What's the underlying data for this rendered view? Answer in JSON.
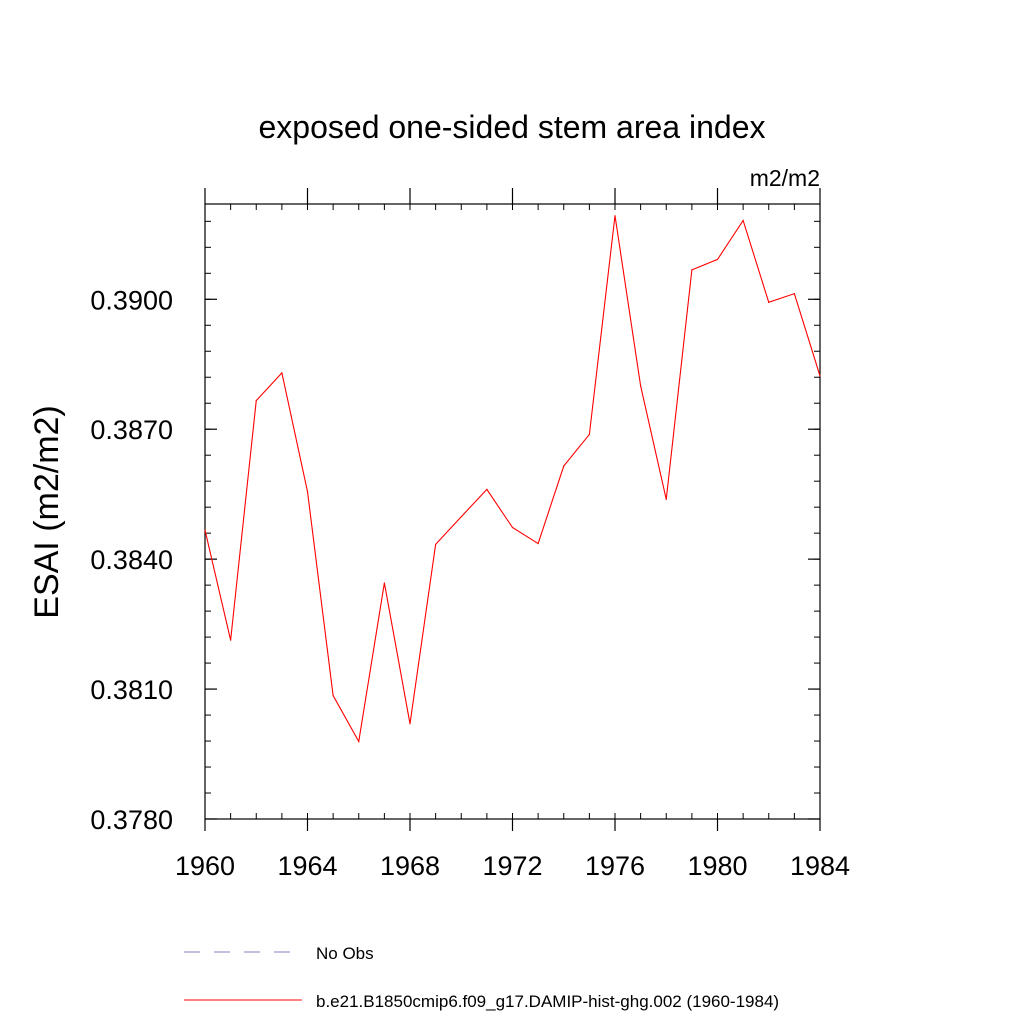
{
  "chart_data": {
    "type": "line",
    "title": "exposed one-sided stem area index",
    "units_label": "m2/m2",
    "xlabel": "",
    "ylabel": "ESAI  (m2/m2)",
    "xlim": [
      1960,
      1984
    ],
    "ylim": [
      0.378,
      0.3922
    ],
    "x_ticks": [
      1960,
      1964,
      1968,
      1972,
      1976,
      1980,
      1984
    ],
    "x_tick_labels": [
      "1960",
      "1964",
      "1968",
      "1972",
      "1976",
      "1980",
      "1984"
    ],
    "y_ticks": [
      0.378,
      0.381,
      0.384,
      0.387,
      0.39
    ],
    "y_tick_labels": [
      "0.3780",
      "0.3810",
      "0.3840",
      "0.3870",
      "0.3900"
    ],
    "y_minor_step": 0.0006,
    "x_minor_step": 1,
    "grid": false,
    "legend_placement": "bottom",
    "series": [
      {
        "name": "No Obs",
        "color": "#8080c0",
        "dash": "dashed",
        "x": [],
        "values": []
      },
      {
        "name": "b.e21.B1850cmip6.f09_g17.DAMIP-hist-ghg.002 (1960-1984)",
        "color": "#ff0000",
        "dash": "solid",
        "x": [
          1960,
          1961,
          1962,
          1963,
          1964,
          1965,
          1966,
          1967,
          1968,
          1969,
          1970,
          1971,
          1972,
          1973,
          1974,
          1975,
          1976,
          1977,
          1978,
          1979,
          1980,
          1981,
          1982,
          1983,
          1984
        ],
        "values": [
          0.38467,
          0.38213,
          0.38766,
          0.3883,
          0.38556,
          0.38085,
          0.37979,
          0.38345,
          0.3802,
          0.38434,
          0.38498,
          0.38561,
          0.38473,
          0.38436,
          0.38615,
          0.38688,
          0.39193,
          0.388,
          0.38538,
          0.39068,
          0.39092,
          0.39182,
          0.38993,
          0.39013,
          0.38823
        ]
      }
    ]
  }
}
